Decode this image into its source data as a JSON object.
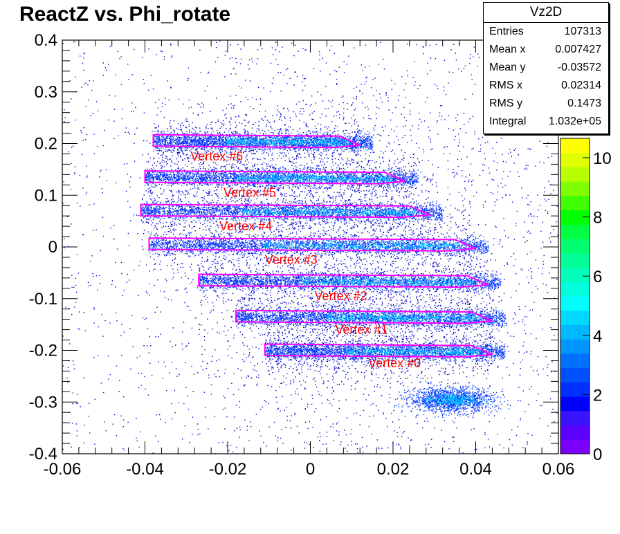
{
  "title": "ReactZ vs. Phi_rotate",
  "stats": {
    "name": "Vz2D",
    "rows": [
      {
        "label": "Entries",
        "value": "107313"
      },
      {
        "label": "Mean x",
        "value": "0.007427"
      },
      {
        "label": "Mean y",
        "value": "-0.03572"
      },
      {
        "label": "RMS x",
        "value": "0.02314"
      },
      {
        "label": "RMS y",
        "value": "0.1473"
      },
      {
        "label": "Integral",
        "value": "1.032e+05"
      }
    ]
  },
  "chart_data": {
    "type": "heatmap",
    "title": "ReactZ vs. Phi_rotate",
    "xlabel": "",
    "ylabel": "",
    "xlim": [
      -0.06,
      0.06
    ],
    "ylim": [
      -0.4,
      0.4
    ],
    "x_ticks": [
      "-0.06",
      "-0.04",
      "-0.02",
      "0",
      "0.02",
      "0.04",
      "0.06"
    ],
    "y_ticks": [
      "0.4",
      "0.3",
      "0.2",
      "0.1",
      "0",
      "-0.1",
      "-0.2",
      "-0.3",
      "-0.4"
    ],
    "colorbar": {
      "range": [
        0,
        12
      ],
      "ticks": [
        "0",
        "2",
        "4",
        "6",
        "8",
        "10"
      ],
      "colors": [
        "#7a00ff",
        "#5a00ff",
        "#3a14ff",
        "#0000ff",
        "#0030ff",
        "#0050ff",
        "#0070ff",
        "#0096ff",
        "#00b8ff",
        "#00d8ff",
        "#00ffff",
        "#00ffdc",
        "#00ffb8",
        "#00ff96",
        "#00ff70",
        "#00ff40",
        "#00ff00",
        "#40ff00",
        "#80ff00",
        "#b8ff00",
        "#e0ff00",
        "#ffff00"
      ]
    },
    "point_color": "#0000cc",
    "contour_color": "#ff00ff",
    "label_color": "#ff0000",
    "vertices": [
      {
        "label": "Vertex #6",
        "y": 0.205,
        "x_start": -0.038,
        "x_end": 0.012,
        "label_x": -0.029,
        "label_y": 0.175
      },
      {
        "label": "Vertex #5",
        "y": 0.135,
        "x_start": -0.04,
        "x_end": 0.023,
        "label_x": -0.021,
        "label_y": 0.105
      },
      {
        "label": "Vertex #4",
        "y": 0.07,
        "x_start": -0.041,
        "x_end": 0.029,
        "label_x": -0.022,
        "label_y": 0.04
      },
      {
        "label": "Vertex #3",
        "y": 0.005,
        "x_start": -0.039,
        "x_end": 0.04,
        "label_x": -0.011,
        "label_y": -0.025
      },
      {
        "label": "Vertex #2",
        "y": -0.065,
        "x_start": -0.027,
        "x_end": 0.043,
        "label_x": 0.001,
        "label_y": -0.095
      },
      {
        "label": "Vertex #1",
        "y": -0.135,
        "x_start": -0.018,
        "x_end": 0.044,
        "label_x": 0.006,
        "label_y": -0.16
      },
      {
        "label": "Vertex #0",
        "y": -0.2,
        "x_start": -0.011,
        "x_end": 0.044,
        "label_x": 0.014,
        "label_y": -0.225
      }
    ],
    "extra_cluster": {
      "x": 0.034,
      "y": -0.295
    }
  }
}
